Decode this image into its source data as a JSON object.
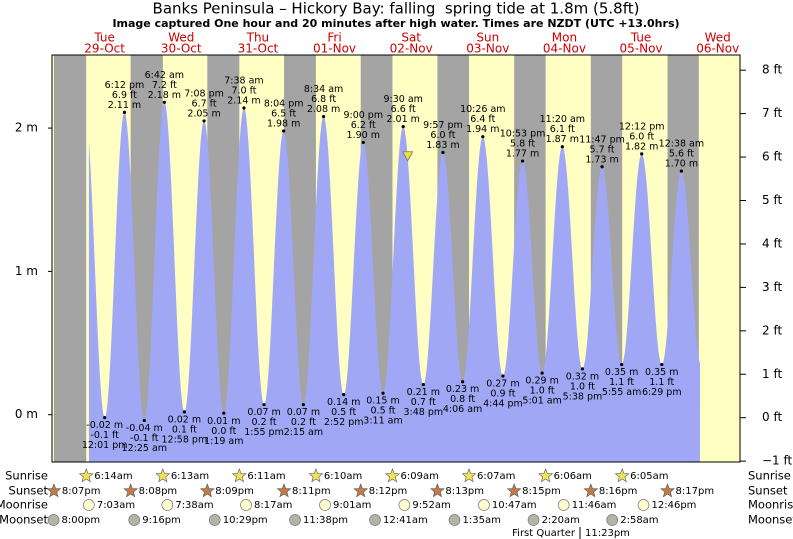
{
  "header": {
    "title": "Banks Peninsula – Hickory Bay: falling  spring tide at 1.8m (5.8ft)",
    "subtitle": "Image captured One hour and 20 minutes after high water. Times are NZDT (UTC +13.0hrs)"
  },
  "chart_data": {
    "type": "area",
    "day_names": [
      null,
      "Tue",
      "Wed",
      "Thu",
      "Fri",
      "Sat",
      "Sun",
      "Mon",
      "Tue",
      "Wed"
    ],
    "dates": [
      null,
      "29-Oct",
      "30-Oct",
      "31-Oct",
      "01-Nov",
      "02-Nov",
      "03-Nov",
      "04-Nov",
      "05-Nov",
      "06-Nov"
    ],
    "tides": {
      "times": [
        "12:01 pm",
        "6:12 pm",
        "12:25 am",
        "6:42 am",
        "12:58 pm",
        "7:08 pm",
        "1:19 am",
        "7:38 am",
        "1:55 pm",
        "8:04 pm",
        "2:15 am",
        "8:34 am",
        "2:52 pm",
        "9:00 pm",
        "3:11 am",
        "9:30 am",
        "3:48 pm",
        "9:57 pm",
        "4:06 am",
        "10:26 am",
        "4:44 pm",
        "10:53 pm",
        "5:01 am",
        "11:20 am",
        "5:38 pm",
        "11:47 pm",
        "5:55 am",
        "12:12 pm",
        "6:29 pm",
        "12:38 am"
      ],
      "values": [
        -0.02,
        2.11,
        -0.04,
        2.18,
        0.02,
        2.05,
        0.01,
        2.14,
        0.07,
        1.98,
        0.07,
        2.08,
        0.14,
        1.9,
        0.15,
        2.01,
        0.21,
        1.83,
        0.23,
        1.94,
        0.27,
        1.77,
        0.29,
        1.87,
        0.32,
        1.73,
        0.35,
        1.82,
        0.35,
        1.7
      ],
      "value_labels": [
        "-0.02 m",
        "2.11 m",
        "-0.04 m",
        "2.18 m",
        "0.02 m",
        "2.05 m",
        "0.01 m",
        "2.14 m",
        "0.07 m",
        "1.98 m",
        "0.07 m",
        "2.08 m",
        "0.14 m",
        "1.90 m",
        "0.15 m",
        "2.01 m",
        "0.21 m",
        "1.83 m",
        "0.23 m",
        "1.94 m",
        "0.27 m",
        "1.77 m",
        "0.29 m",
        "1.87 m",
        "0.32 m",
        "1.73 m",
        "0.35 m",
        "1.82 m",
        "0.35 m",
        "1.70 m"
      ],
      "ft_labels": [
        "-0.1 ft",
        "6.9 ft",
        "-0.1 ft",
        "7.2 ft",
        "0.1 ft",
        "6.7 ft",
        "0.0 ft",
        "7.0 ft",
        "0.2 ft",
        "6.5 ft",
        "0.2 ft",
        "6.8 ft",
        "0.5 ft",
        "6.2 ft",
        "0.5 ft",
        "6.6 ft",
        "0.7 ft",
        "6.0 ft",
        "0.8 ft",
        "6.4 ft",
        "0.9 ft",
        "5.8 ft",
        "1.0 ft",
        "6.1 ft",
        "1.0 ft",
        "5.7 ft",
        "1.1 ft",
        "6.0 ft",
        "1.1 ft",
        "5.6 ft"
      ]
    },
    "ylim": [
      -0.33,
      2.51
    ],
    "yticks": [
      {
        "value": 0,
        "label": "0 m"
      },
      {
        "value": 1,
        "label": "1 m"
      },
      {
        "value": 2,
        "label": "2 m"
      }
    ],
    "y2lim": [
      -1.02,
      8.35
    ],
    "y2ticks": [
      {
        "value": -1,
        "label": "−1 ft"
      },
      {
        "value": 0,
        "label": "0 ft"
      },
      {
        "value": 1,
        "label": "1 ft"
      },
      {
        "value": 2,
        "label": "2 ft"
      },
      {
        "value": 3,
        "label": "3 ft"
      },
      {
        "value": 4,
        "label": "4 ft"
      },
      {
        "value": 5,
        "label": "5 ft"
      },
      {
        "value": 6,
        "label": "6 ft"
      },
      {
        "value": 7,
        "label": "7 ft"
      },
      {
        "value": 8,
        "label": "8 ft"
      }
    ],
    "colors": {
      "tide": "#a0a8f6",
      "day": "#ffffc4",
      "night": "#a4a4a4",
      "day_label": "#d00000"
    },
    "current": {
      "level": 1.8,
      "after": "9:30 am"
    },
    "almanac": [
      {
        "name": "Sunrise",
        "icon": "#f2e25a",
        "times": [
          null,
          "6:14am",
          "6:13am",
          "6:11am",
          "6:10am",
          "6:09am",
          "6:07am",
          "6:06am",
          "6:05am",
          null
        ]
      },
      {
        "name": "Sunset",
        "icon": "#c47a46",
        "times": [
          "8:07pm",
          "8:08pm",
          "8:09pm",
          "8:11pm",
          "8:12pm",
          "8:13pm",
          "8:15pm",
          "8:16pm",
          "8:17pm",
          null
        ]
      },
      {
        "name": "Moonrise",
        "icon": "#ffffcc",
        "times": [
          null,
          "7:03am",
          "7:38am",
          "8:17am",
          "9:01am",
          "9:52am",
          "10:47am",
          "11:46am",
          "12:46pm",
          null
        ]
      },
      {
        "name": "Moonset",
        "icon": "#b4b4a6",
        "times": [
          "8:00pm",
          "9:16pm",
          "10:29pm",
          "11:38pm",
          null,
          "12:41am",
          "1:35am",
          "2:20am",
          "2:58am",
          null
        ]
      }
    ],
    "moon_phase": {
      "name": "First Quarter",
      "time": "11:23pm"
    }
  }
}
